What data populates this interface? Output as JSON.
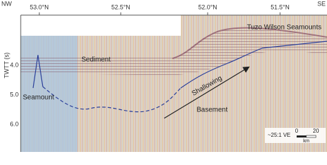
{
  "figure": {
    "ends": {
      "left": "NW",
      "right": "SE"
    },
    "latitudes": [
      "53.0°N",
      "52.5°N",
      "52.0°N",
      "51.5°N"
    ],
    "y_axis": {
      "label": "TWTT (s)",
      "ticks": [
        "4.0",
        "5.0",
        "6.0"
      ]
    },
    "annotations": {
      "seamounts": "Tuzo Wilson Seamounts",
      "sediment": "Sediment",
      "seamount": "Seamount",
      "shallowing": "Shallowing",
      "basement": "Basement"
    },
    "scale": {
      "exaggeration": "~25:1 VE",
      "start": "0",
      "end": "20",
      "unit": "km"
    }
  }
}
